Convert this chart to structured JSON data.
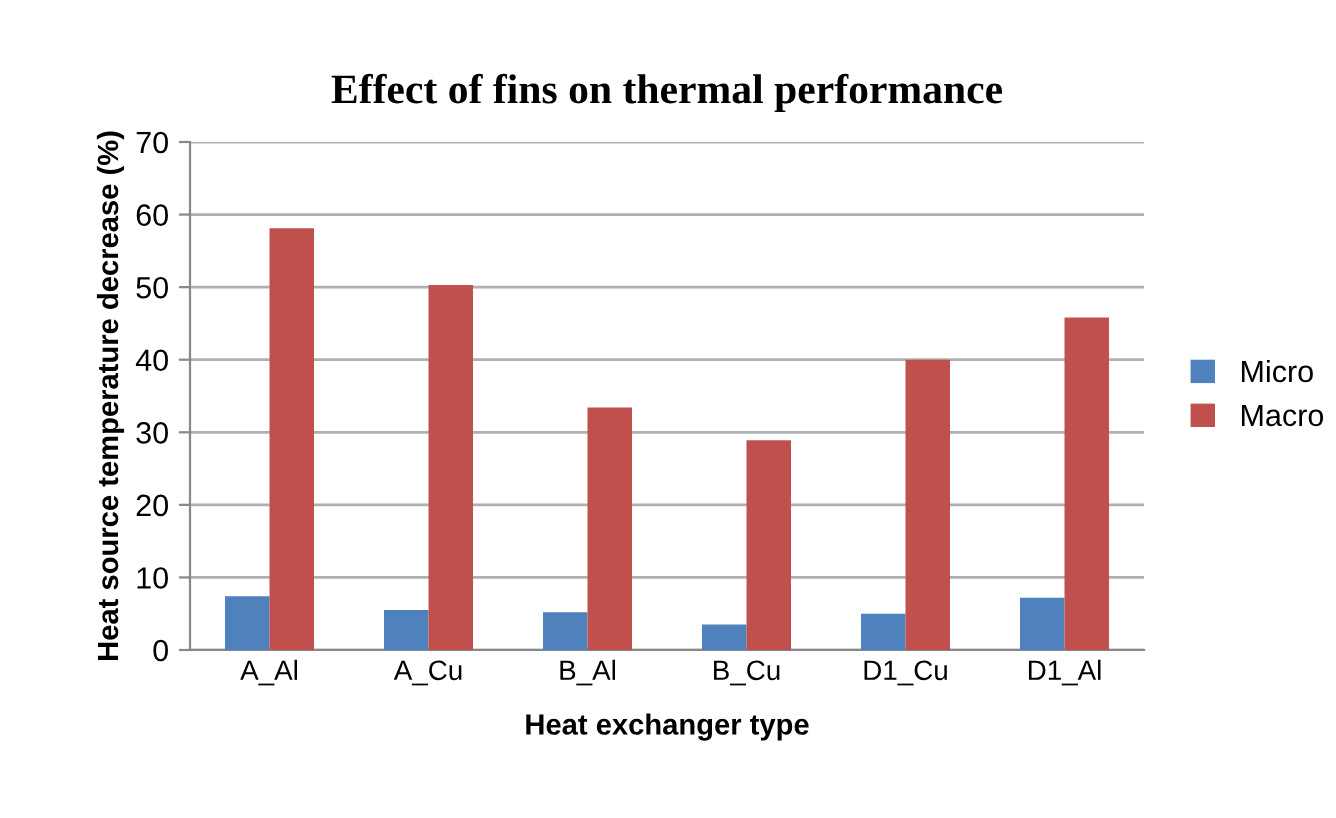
{
  "chart_data": {
    "type": "bar",
    "title": "Effect of fins on thermal performance",
    "xlabel": "Heat exchanger type",
    "ylabel": "Heat source temperature decrease (%)",
    "categories": [
      "A_Al",
      "A_Cu",
      "B_Al",
      "B_Cu",
      "D1_Cu",
      "D1_Al"
    ],
    "series": [
      {
        "name": "Micro",
        "color": "#4f81bd",
        "values": [
          7.4,
          5.5,
          5.2,
          3.5,
          5.0,
          7.2
        ]
      },
      {
        "name": "Macro",
        "color": "#c0504d",
        "values": [
          58.1,
          50.3,
          33.4,
          28.9,
          40.0,
          45.8
        ]
      }
    ],
    "ylim": [
      0,
      70
    ],
    "yticks": [
      0,
      10,
      20,
      30,
      40,
      50,
      60,
      70
    ],
    "grid": "y",
    "legend": "right"
  }
}
